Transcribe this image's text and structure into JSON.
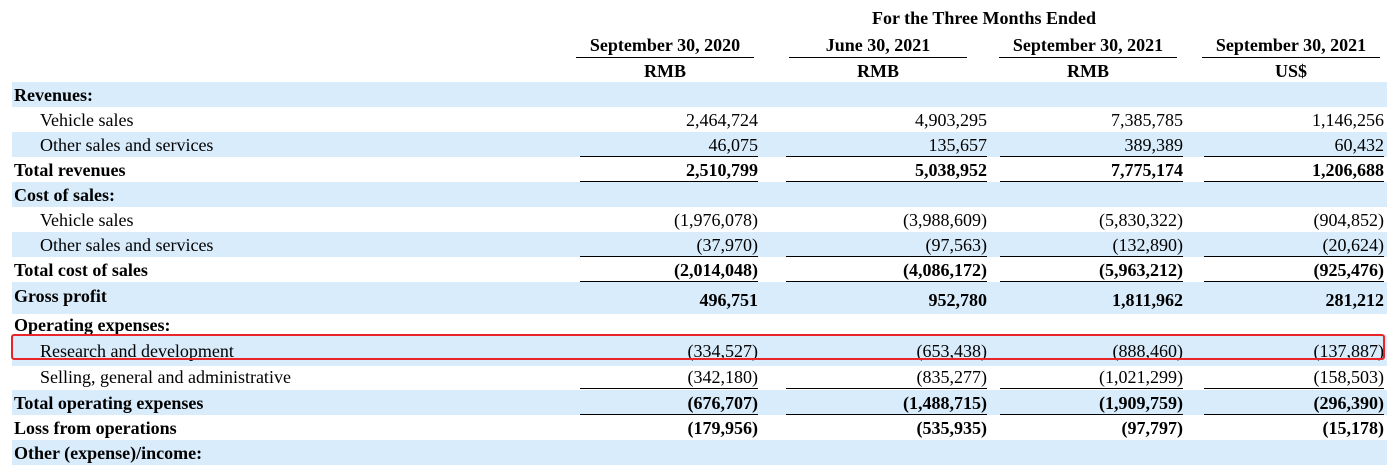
{
  "header": {
    "span_title": "For the Three Months Ended",
    "columns": [
      {
        "date": "September 30, 2020",
        "currency": "RMB"
      },
      {
        "date": "June 30, 2021",
        "currency": "RMB"
      },
      {
        "date": "September 30, 2021",
        "currency": "RMB"
      },
      {
        "date": "September 30, 2021",
        "currency": "US$"
      }
    ]
  },
  "rows": [
    {
      "label": "Revenues:",
      "values": [
        "",
        "",
        "",
        ""
      ]
    },
    {
      "label": "Vehicle sales",
      "values": [
        "2,464,724",
        "4,903,295",
        "7,385,785",
        "1,146,256"
      ]
    },
    {
      "label": "Other sales and services",
      "values": [
        "46,075",
        "135,657",
        "389,389",
        "60,432"
      ]
    },
    {
      "label": "Total revenues",
      "values": [
        "2,510,799",
        "5,038,952",
        "7,775,174",
        "1,206,688"
      ]
    },
    {
      "label": "Cost of sales:",
      "values": [
        "",
        "",
        "",
        ""
      ]
    },
    {
      "label": "Vehicle sales",
      "values": [
        "(1,976,078)",
        "(3,988,609)",
        "(5,830,322)",
        "(904,852)"
      ]
    },
    {
      "label": "Other sales and services",
      "values": [
        "(37,970)",
        "(97,563)",
        "(132,890)",
        "(20,624)"
      ]
    },
    {
      "label": "Total cost of sales",
      "values": [
        "(2,014,048)",
        "(4,086,172)",
        "(5,963,212)",
        "(925,476)"
      ]
    },
    {
      "label": "Gross profit",
      "values": [
        "496,751",
        "952,780",
        "1,811,962",
        "281,212"
      ]
    },
    {
      "label": "Operating expenses:",
      "values": [
        "",
        "",
        "",
        ""
      ]
    },
    {
      "label": "Research and development",
      "values": [
        "(334,527)",
        "(653,438)",
        "(888,460)",
        "(137,887)"
      ]
    },
    {
      "label": "Selling, general and administrative",
      "values": [
        "(342,180)",
        "(835,277)",
        "(1,021,299)",
        "(158,503)"
      ]
    },
    {
      "label": "Total operating expenses",
      "values": [
        "(676,707)",
        "(1,488,715)",
        "(1,909,759)",
        "(296,390)"
      ]
    },
    {
      "label": "Loss from operations",
      "values": [
        "(179,956)",
        "(535,935)",
        "(97,797)",
        "(15,178)"
      ]
    },
    {
      "label": "Other (expense)/income:",
      "values": [
        "",
        "",
        "",
        ""
      ]
    }
  ],
  "highlight_color": "#e8262a",
  "shade_color": "#d9ecfb"
}
